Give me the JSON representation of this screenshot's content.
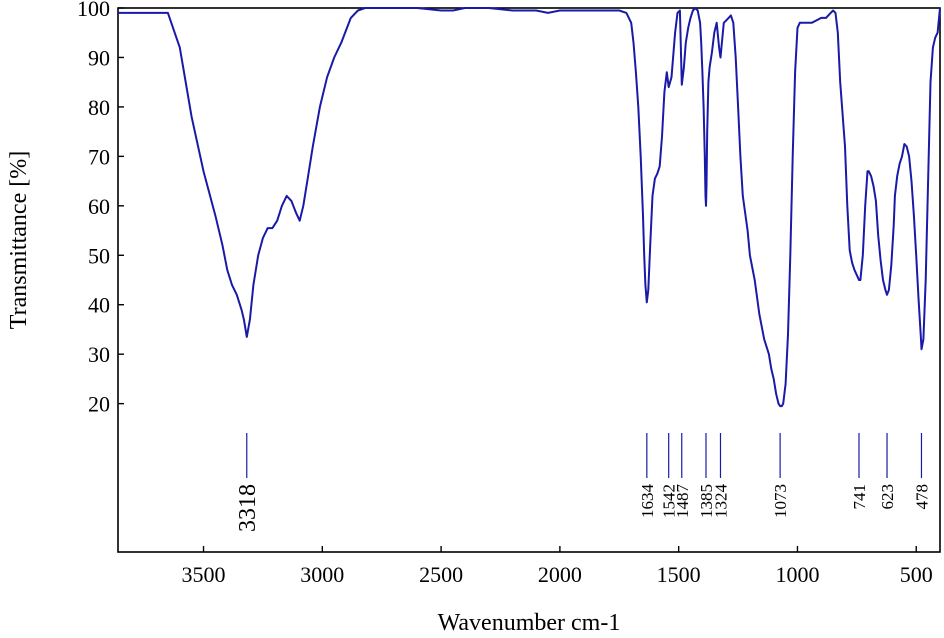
{
  "chart_data": {
    "type": "line",
    "title": "",
    "xlabel": "Wavenumber cm-1",
    "ylabel": "Transmittance [%]",
    "xlim": [
      3860,
      400
    ],
    "ylim": [
      -10,
      100
    ],
    "x_reversed": true,
    "grid": false,
    "legend": "none",
    "line_color": "#1a1aa8",
    "x_ticks": [
      3500,
      3000,
      2500,
      2000,
      1500,
      1000,
      500
    ],
    "x_tick_labels": [
      "3500",
      "3000",
      "2500",
      "2000",
      "1500",
      "1000",
      "500"
    ],
    "y_ticks": [
      20,
      30,
      40,
      50,
      60,
      70,
      80,
      90,
      100
    ],
    "y_tick_labels": [
      "20",
      "30",
      "40",
      "50",
      "60",
      "70",
      "80",
      "90",
      "100"
    ],
    "series": [
      {
        "x": [
          3860,
          3800,
          3700,
          3650,
          3600,
          3550,
          3500,
          3450,
          3420,
          3400,
          3380,
          3360,
          3340,
          3330,
          3318,
          3305,
          3290,
          3270,
          3250,
          3230,
          3210,
          3190,
          3170,
          3150,
          3130,
          3110,
          3095,
          3080,
          3060,
          3040,
          3010,
          2980,
          2950,
          2920,
          2880,
          2850,
          2820,
          2700,
          2600,
          2500,
          2450,
          2400,
          2300,
          2200,
          2100,
          2050,
          2000,
          1950,
          1900,
          1800,
          1750,
          1720,
          1700,
          1690,
          1680,
          1670,
          1660,
          1650,
          1645,
          1640,
          1634,
          1628,
          1620,
          1610,
          1600,
          1590,
          1580,
          1570,
          1560,
          1550,
          1542,
          1530,
          1515,
          1505,
          1495,
          1487,
          1478,
          1470,
          1460,
          1450,
          1440,
          1430,
          1420,
          1410,
          1405,
          1400,
          1395,
          1390,
          1387,
          1385,
          1383,
          1380,
          1375,
          1370,
          1360,
          1350,
          1340,
          1330,
          1324,
          1318,
          1310,
          1300,
          1290,
          1280,
          1270,
          1260,
          1250,
          1240,
          1230,
          1210,
          1200,
          1180,
          1160,
          1140,
          1120,
          1110,
          1100,
          1090,
          1080,
          1073,
          1066,
          1060,
          1050,
          1040,
          1030,
          1020,
          1010,
          1000,
          990,
          980,
          960,
          940,
          920,
          900,
          880,
          870,
          860,
          850,
          840,
          830,
          820,
          800,
          790,
          780,
          770,
          760,
          750,
          741,
          735,
          725,
          715,
          705,
          700,
          690,
          680,
          670,
          660,
          650,
          640,
          630,
          623,
          615,
          605,
          595,
          590,
          580,
          570,
          560,
          550,
          540,
          530,
          520,
          510,
          500,
          490,
          480,
          478,
          470,
          460,
          450,
          440,
          430,
          420,
          410,
          400
        ],
        "y": [
          99,
          99,
          99,
          99,
          92,
          78,
          67,
          58,
          52,
          47,
          44,
          42,
          39,
          37,
          33.5,
          37,
          44,
          50,
          53.5,
          55.5,
          55.5,
          57,
          60,
          62,
          61,
          58.5,
          57,
          60,
          66,
          72,
          80,
          86,
          90,
          93,
          98,
          99.5,
          100,
          100,
          100,
          99.5,
          99.5,
          100,
          100,
          99.5,
          99.5,
          99,
          99.5,
          99.5,
          99.5,
          99.5,
          99.5,
          99,
          97,
          93,
          87,
          80,
          70,
          58,
          50,
          44,
          40.5,
          43,
          52,
          62,
          65.5,
          66.5,
          68,
          74,
          83,
          87,
          84,
          86,
          95,
          99,
          99.5,
          84.5,
          88,
          93,
          96,
          98,
          99.5,
          100,
          99.5,
          97,
          93,
          87,
          80,
          70,
          62,
          60,
          64,
          75,
          85,
          88,
          91,
          95,
          97,
          92,
          90,
          93,
          97,
          97.5,
          98,
          98.5,
          97,
          90,
          80,
          70,
          62,
          55,
          50,
          45,
          38,
          33,
          30,
          27,
          25,
          22,
          20,
          19.5,
          19.5,
          20,
          24,
          34,
          50,
          70,
          87,
          96,
          97,
          97,
          97,
          97,
          97.5,
          98,
          98,
          98.5,
          99,
          99.5,
          99,
          95,
          85,
          72,
          60,
          51,
          48.5,
          47,
          46,
          45,
          45,
          50,
          60,
          67,
          67,
          66,
          64,
          61,
          54,
          49,
          45,
          43,
          42,
          43,
          48,
          56,
          62,
          66,
          68.5,
          70,
          72.5,
          72,
          70,
          65,
          58,
          50,
          41,
          33,
          31,
          33,
          45,
          65,
          85,
          92,
          94,
          95,
          100
        ]
      }
    ],
    "peak_markers": [
      {
        "x": 3318,
        "label": "3318",
        "big": true
      },
      {
        "x": 1634,
        "label": "1634",
        "big": false
      },
      {
        "x": 1542,
        "label": "1542",
        "big": false
      },
      {
        "x": 1487,
        "label": "1487",
        "big": false
      },
      {
        "x": 1385,
        "label": "1385",
        "big": false
      },
      {
        "x": 1324,
        "label": "1324",
        "big": false
      },
      {
        "x": 1073,
        "label": "1073",
        "big": false
      },
      {
        "x": 741,
        "label": "741",
        "big": false
      },
      {
        "x": 623,
        "label": "623",
        "big": false
      },
      {
        "x": 478,
        "label": "478",
        "big": false
      }
    ]
  }
}
